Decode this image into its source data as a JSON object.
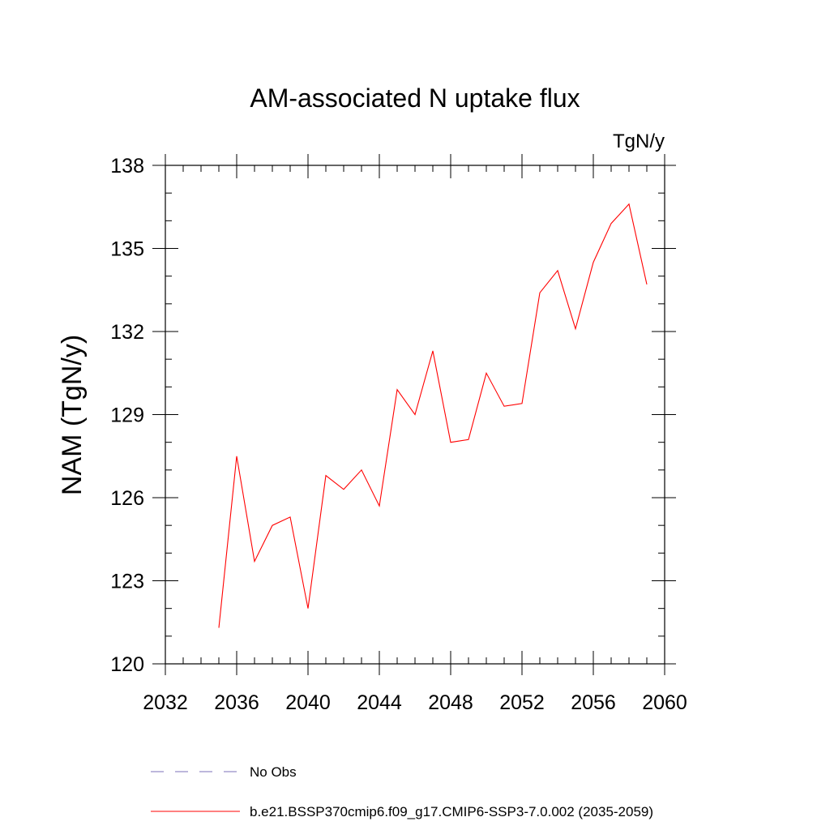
{
  "chart_data": {
    "type": "line",
    "title": "AM-associated N uptake flux",
    "units_label": "TgN/y",
    "ylabel": "NAM  (TgN/y)",
    "xlabel": "",
    "xlim": [
      2032,
      2060
    ],
    "ylim": [
      120,
      138
    ],
    "x_ticks": [
      2032,
      2036,
      2040,
      2044,
      2048,
      2052,
      2056,
      2060
    ],
    "x_tick_labels": [
      "2032",
      "2036",
      "2040",
      "2044",
      "2048",
      "2052",
      "2056",
      "2060"
    ],
    "x_minor_step": 1,
    "y_ticks": [
      120,
      123,
      126,
      129,
      132,
      135,
      138
    ],
    "y_tick_labels": [
      "120",
      "123",
      "126",
      "129",
      "132",
      "135",
      "138"
    ],
    "y_minor_step": 1,
    "grid": false,
    "legend_position": "bottom",
    "series": [
      {
        "name": "b.e21.BSSP370cmip6.f09_g17.CMIP6-SSP3-7.0.002 (2035-2059)",
        "color": "#ff0000",
        "style": "solid",
        "x": [
          2035,
          2036,
          2037,
          2038,
          2039,
          2040,
          2041,
          2042,
          2043,
          2044,
          2045,
          2046,
          2047,
          2048,
          2049,
          2050,
          2051,
          2052,
          2053,
          2054,
          2055,
          2056,
          2057,
          2058,
          2059
        ],
        "values": [
          121.3,
          127.5,
          123.7,
          125.0,
          125.3,
          122.0,
          126.8,
          126.3,
          127.0,
          125.7,
          129.9,
          129.0,
          131.3,
          128.0,
          128.1,
          130.5,
          129.3,
          129.4,
          133.4,
          134.2,
          132.1,
          134.5,
          135.9,
          136.6,
          133.7
        ]
      }
    ],
    "legend": [
      {
        "label": "No Obs",
        "color": "#7b6fb8",
        "style": "dashed"
      },
      {
        "label": "b.e21.BSSP370cmip6.f09_g17.CMIP6-SSP3-7.0.002 (2035-2059)",
        "color": "#ff0000",
        "style": "solid"
      }
    ]
  }
}
